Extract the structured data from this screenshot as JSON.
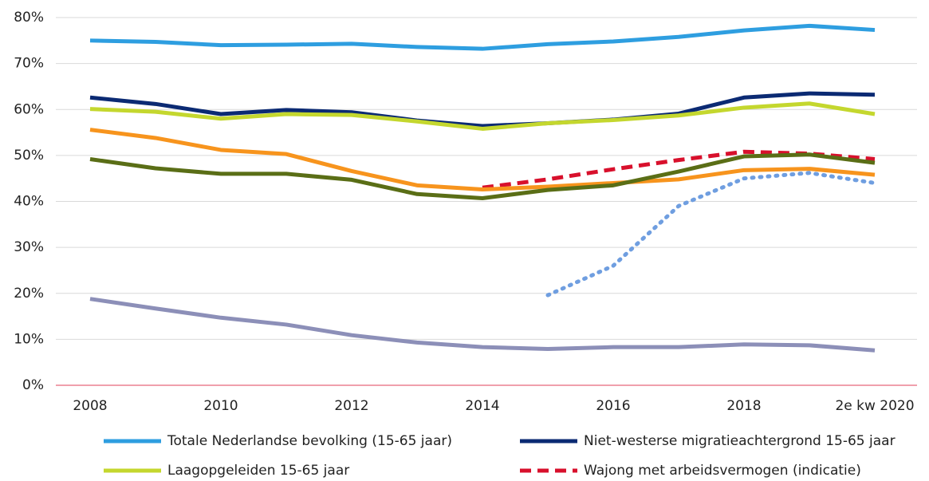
{
  "chart_data": {
    "type": "line",
    "categories": [
      "2008",
      null,
      "2010",
      null,
      "2012",
      null,
      "2014",
      null,
      "2016",
      null,
      "2018",
      null,
      "2e kw 2020"
    ],
    "ylim": [
      0,
      80
    ],
    "yticks": [
      {
        "value": 0,
        "label": "0%"
      },
      {
        "value": 10,
        "label": "10%"
      },
      {
        "value": 20,
        "label": "20%"
      },
      {
        "value": 30,
        "label": "30%"
      },
      {
        "value": 40,
        "label": "40%"
      },
      {
        "value": 50,
        "label": "50%"
      },
      {
        "value": 60,
        "label": "60%"
      },
      {
        "value": 70,
        "label": "70%"
      },
      {
        "value": 80,
        "label": "80%"
      }
    ],
    "grid": true,
    "zero_line_color": "#e0405a",
    "series": [
      {
        "name": "Totale Nederlandse bevolking (15-65 jaar)",
        "color": "#2e9ee0",
        "style": "solid",
        "values": [
          75,
          74.7,
          74,
          74.1,
          74.3,
          73.6,
          73.2,
          74.2,
          74.8,
          75.8,
          77.2,
          78.2,
          77.3
        ]
      },
      {
        "name": "Niet-westerse migratieachtergrond 15-65 jaar",
        "color": "#0b2a73",
        "style": "solid",
        "values": [
          62.6,
          61.2,
          59,
          59.9,
          59.4,
          57.6,
          56.4,
          57,
          57.8,
          59.1,
          62.6,
          63.5,
          63.2
        ]
      },
      {
        "name": "Laagopgeleiden 15-65 jaar",
        "color": "#c4d72e",
        "style": "solid",
        "values": [
          60.1,
          59.5,
          58,
          59,
          58.8,
          57.4,
          55.8,
          57,
          57.7,
          58.7,
          60.4,
          61.3,
          59
        ]
      },
      {
        "name": "Wajong met arbeidsvermogen (indicatie)",
        "color": "#d8102c",
        "style": "dashed",
        "values": [
          null,
          null,
          null,
          null,
          null,
          null,
          43,
          44.8,
          47,
          49,
          50.8,
          50.4,
          49.2
        ]
      },
      {
        "color": "#f7941d",
        "style": "solid",
        "values": [
          55.6,
          53.8,
          51.2,
          50.3,
          46.6,
          43.5,
          42.6,
          43.2,
          44,
          44.8,
          46.8,
          47.1,
          45.8
        ]
      },
      {
        "color": "#5a6e16",
        "style": "solid",
        "values": [
          49.2,
          47.2,
          46,
          46,
          44.7,
          41.6,
          40.7,
          42.5,
          43.5,
          46.5,
          49.8,
          50.2,
          48.4
        ]
      },
      {
        "color": "#6f9ee0",
        "style": "dotted",
        "values": [
          null,
          null,
          null,
          null,
          null,
          null,
          null,
          19.6,
          26,
          39,
          45,
          46.2,
          44
        ]
      },
      {
        "color": "#8c8fb8",
        "style": "solid",
        "values": [
          18.8,
          16.7,
          14.7,
          13.2,
          10.9,
          9.3,
          8.3,
          7.9,
          8.3,
          8.3,
          8.9,
          8.7,
          7.6
        ]
      }
    ]
  }
}
